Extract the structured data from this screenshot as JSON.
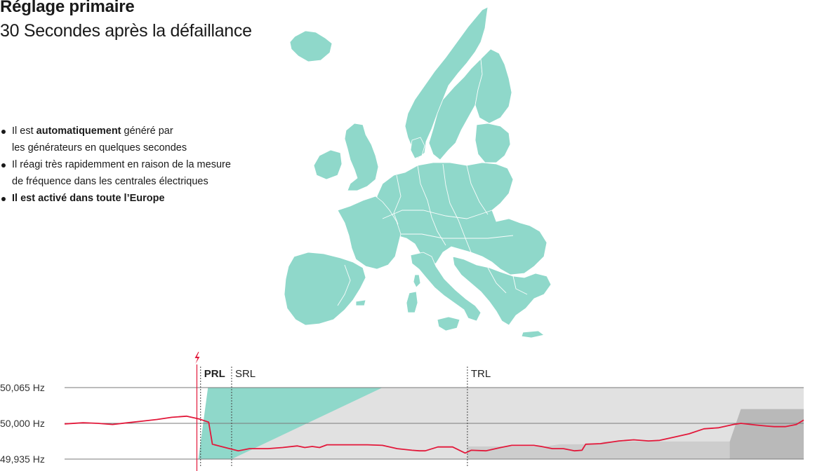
{
  "title": "Réglage primaire",
  "subtitle": "30 Secondes après la défaillance",
  "bullets": [
    {
      "pre": "Il est ",
      "bold": "automatiquement",
      "post": " généré par",
      "line2": "les générateurs en quelques secondes"
    },
    {
      "pre": "Il réagi très rapidemment en raison de la mesure",
      "bold": "",
      "post": "",
      "line2": "de fréquence dans les centrales électriques"
    },
    {
      "pre": "",
      "bold": "Il est activé dans toute l’Europe",
      "post": "",
      "line2": ""
    }
  ],
  "colors": {
    "teal": "#8fd8ca",
    "red": "#e2183a",
    "light_gray": "#e1e1e1",
    "mid_gray": "#cdcdcd",
    "dark_gray": "#b9b9b9",
    "grid": "#7a7a7a"
  },
  "map": {
    "icon": "europe-map-icon"
  },
  "fault_icon": "lightning-icon",
  "chart_data": {
    "type": "line",
    "yunit": "Hz",
    "ylim": [
      49.935,
      50.065
    ],
    "yticks": [
      {
        "value": 50.065,
        "label": "50,065 Hz"
      },
      {
        "value": 50.0,
        "label": "50,000 Hz"
      },
      {
        "value": 49.935,
        "label": "49,935 Hz"
      }
    ],
    "xlim": [
      0,
      100
    ],
    "phases": [
      {
        "name": "PRL",
        "x": 18.4,
        "bold": true
      },
      {
        "name": "SRL",
        "x": 22.6,
        "bold": false
      },
      {
        "name": "TRL",
        "x": 54.5,
        "bold": false
      }
    ],
    "fault_x": 17.9,
    "series": [
      {
        "x": [
          0,
          2.5,
          4.5,
          6.5,
          8.5,
          10.5,
          12.5,
          14.5,
          16.5,
          18.2,
          19.5,
          20.0,
          22.0,
          23.5,
          25.0,
          27.5,
          29.5,
          31.5,
          32.5,
          33.5,
          34.5,
          35.5,
          37.0,
          39.0,
          41.0,
          43.0,
          45.0,
          47.0,
          48.0,
          48.8,
          50.5,
          52.5,
          54.2,
          55.0,
          57.0,
          59.0,
          60.5,
          62.0,
          63.5,
          64.5,
          66.0,
          67.5,
          69.0,
          70.0,
          70.5,
          72.5,
          75.0,
          77.0,
          79.0,
          80.5,
          82.5,
          84.5,
          86.5,
          88.5,
          90.5,
          91.5,
          93.5,
          95.0,
          96.0,
          97.5,
          99.0,
          100
        ],
        "y": [
          49.999,
          50.001,
          50.0,
          49.998,
          50.001,
          50.004,
          50.007,
          50.011,
          50.013,
          50.008,
          50.002,
          49.962,
          49.955,
          49.95,
          49.954,
          49.954,
          49.956,
          49.959,
          49.956,
          49.958,
          49.956,
          49.961,
          49.961,
          49.961,
          49.961,
          49.96,
          49.954,
          49.951,
          49.95,
          49.95,
          49.957,
          49.957,
          49.946,
          49.951,
          49.95,
          49.956,
          49.96,
          49.96,
          49.96,
          49.958,
          49.954,
          49.954,
          49.95,
          49.951,
          49.962,
          49.963,
          49.968,
          49.97,
          49.968,
          49.969,
          49.975,
          49.981,
          49.99,
          49.992,
          49.998,
          50.0,
          49.997,
          49.995,
          49.994,
          49.994,
          49.998,
          50.006
        ]
      }
    ]
  }
}
